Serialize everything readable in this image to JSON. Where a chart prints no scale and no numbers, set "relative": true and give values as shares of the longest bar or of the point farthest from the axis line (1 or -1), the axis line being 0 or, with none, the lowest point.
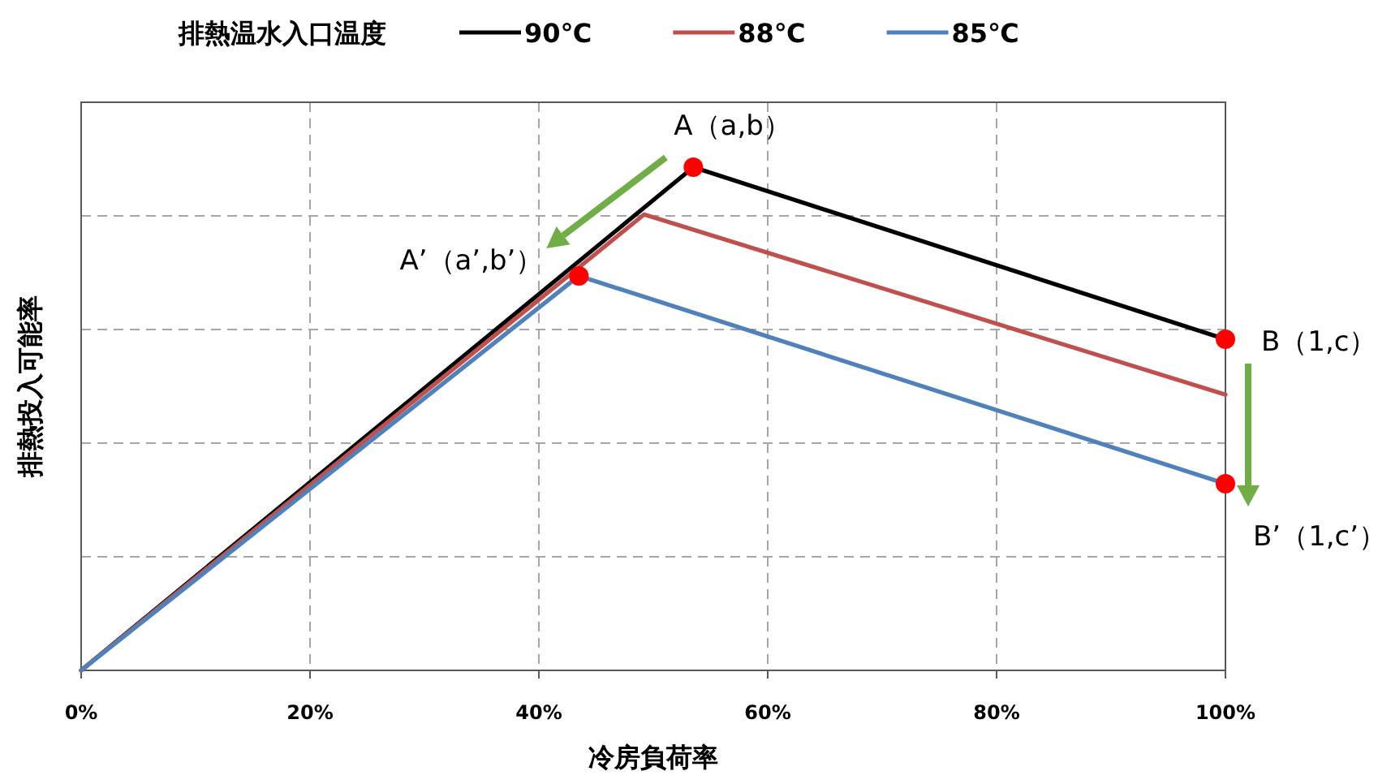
{
  "chart_data": {
    "type": "line",
    "relative": true,
    "legend_title": "排熱温水入口温度",
    "legend": "top",
    "xlabel": "冷房負荷率",
    "ylabel": "排熱投入可能率",
    "xlim": [
      0,
      100
    ],
    "xticks": [
      {
        "value": 0,
        "label": "0%"
      },
      {
        "value": 20,
        "label": "20%"
      },
      {
        "value": 40,
        "label": "40%"
      },
      {
        "value": 60,
        "label": "60%"
      },
      {
        "value": 80,
        "label": "80%"
      },
      {
        "value": 100,
        "label": "100%"
      }
    ],
    "grid": true,
    "series": [
      {
        "name": "90℃",
        "color": "#000000",
        "x": [
          0,
          53.5,
          100
        ],
        "values": [
          0,
          1,
          0.658
        ]
      },
      {
        "name": "88℃",
        "color": "#c0504d",
        "x": [
          0,
          49.2,
          100
        ],
        "values": [
          0,
          0.906,
          0.548
        ]
      },
      {
        "name": "85℃",
        "color": "#4f81bd",
        "x": [
          0,
          43.5,
          100
        ],
        "values": [
          0,
          0.784,
          0.371
        ]
      },
      {
        "type": "scatter",
        "color": "#ff0000",
        "x": [
          53.5,
          43.5,
          100,
          100
        ],
        "values": [
          1,
          0.784,
          0.658,
          0.371
        ]
      }
    ],
    "annotations": [
      {
        "text": "A（a,b）",
        "x": 53.5,
        "y": 1
      },
      {
        "text": "A’（a’,b’）",
        "x": 43.5,
        "y": 0.784
      },
      {
        "text": "B（1,c）",
        "x": 100,
        "y": 0.658
      },
      {
        "text": "B’（1,c’）",
        "x": 100,
        "y": 0.371
      }
    ]
  }
}
